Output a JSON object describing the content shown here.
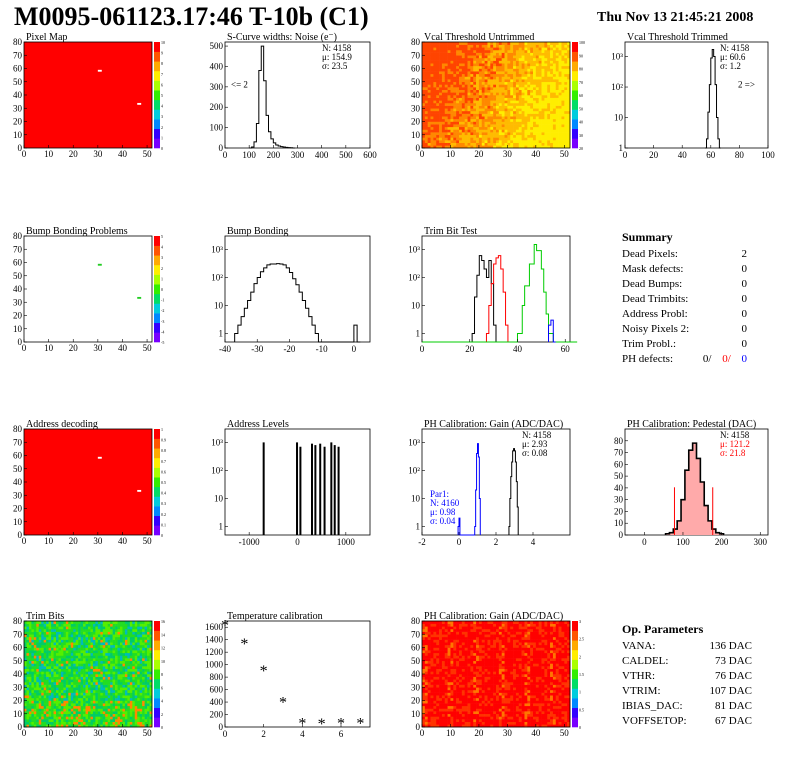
{
  "header": {
    "title": "M0095-061123.17:46 T-10b (C1)",
    "date": "Thu Nov 13 21:45:21 2008"
  },
  "colors": {
    "map_red": "#ff0000",
    "blue": "#0000ff",
    "red": "#ff0000",
    "green": "#00cc00",
    "black": "#000000"
  },
  "panels": [
    {
      "id": "pixel_map",
      "title": "Pixel Map",
      "type": "heatmap",
      "fill_color": "#ff0000",
      "xticks": [
        "0",
        "10",
        "20",
        "30",
        "40",
        "50"
      ],
      "yticks": [
        "0",
        "10",
        "20",
        "30",
        "40",
        "50",
        "60",
        "70",
        "80"
      ],
      "palette_ticks": [
        "0",
        "1",
        "2",
        "3",
        "4",
        "5",
        "6",
        "7",
        "8",
        "9",
        "10"
      ],
      "defect_pixels": [
        {
          "col": 30,
          "row": 58
        },
        {
          "col": 46,
          "row": 33
        }
      ]
    },
    {
      "id": "scurve",
      "title": "S-Curve widths: Noise (e⁻)",
      "type": "histogram",
      "xlim": [
        0,
        600
      ],
      "ylim": [
        0,
        520
      ],
      "log": false,
      "xticks": [
        "0",
        "100",
        "200",
        "300",
        "400",
        "500",
        "600"
      ],
      "yticks": [
        "0",
        "100",
        "200",
        "300",
        "400",
        "500"
      ],
      "stats": [
        "N: 4158",
        "μ: 154.9",
        "σ: 23.5"
      ],
      "note": "<= 2",
      "series": [
        {
          "color": "#000000",
          "bins": [
            [
              100,
              0
            ],
            [
              110,
              5
            ],
            [
              120,
              30
            ],
            [
              130,
              120
            ],
            [
              140,
              380
            ],
            [
              150,
              500
            ],
            [
              160,
              330
            ],
            [
              170,
              160
            ],
            [
              180,
              80
            ],
            [
              190,
              45
            ],
            [
              200,
              25
            ],
            [
              210,
              15
            ],
            [
              220,
              10
            ],
            [
              230,
              7
            ],
            [
              240,
              5
            ],
            [
              250,
              3
            ],
            [
              260,
              2
            ],
            [
              270,
              1
            ],
            [
              280,
              0
            ]
          ]
        }
      ]
    },
    {
      "id": "vcal_untrimmed",
      "title": "Vcal Threshold Untrimmed",
      "type": "heatmap",
      "xticks": [
        "0",
        "10",
        "20",
        "30",
        "40",
        "50"
      ],
      "yticks": [
        "0",
        "10",
        "20",
        "30",
        "40",
        "50",
        "60",
        "70",
        "80"
      ],
      "palette_ticks": [
        "20",
        "30",
        "40",
        "50",
        "60",
        "70",
        "80",
        "90",
        "100"
      ]
    },
    {
      "id": "vcal_trimmed",
      "title": "Vcal Threshold Trimmed",
      "type": "histogram",
      "xlim": [
        0,
        100
      ],
      "ylim": [
        1,
        3000
      ],
      "log": true,
      "xticks": [
        "0",
        "20",
        "40",
        "60",
        "80",
        "100"
      ],
      "yticks": [
        "1",
        "10",
        "10²",
        "10³"
      ],
      "stats": [
        "N: 4158",
        "μ: 60.6",
        "σ:  1.2"
      ],
      "note": "2 =>",
      "series": [
        {
          "color": "#000000",
          "bins": [
            [
              56,
              0
            ],
            [
              57,
              2
            ],
            [
              58,
              15
            ],
            [
              59,
              120
            ],
            [
              60,
              900
            ],
            [
              61,
              1700
            ],
            [
              62,
              1000
            ],
            [
              63,
              120
            ],
            [
              64,
              10
            ],
            [
              65,
              2
            ],
            [
              66,
              0
            ]
          ]
        }
      ]
    },
    {
      "id": "bump_problems",
      "title": "Bump Bonding Problems",
      "type": "heatmap",
      "fill_color": "#ffffff",
      "xticks": [
        "0",
        "10",
        "20",
        "30",
        "40",
        "50"
      ],
      "yticks": [
        "0",
        "10",
        "20",
        "30",
        "40",
        "50",
        "60",
        "70",
        "80"
      ],
      "palette_ticks": [
        "-5",
        "-4",
        "-3",
        "-2",
        "-1",
        "0",
        "1",
        "2",
        "3",
        "4",
        "5"
      ],
      "defect_pixels": [
        {
          "col": 30,
          "row": 58
        },
        {
          "col": 46,
          "row": 33
        }
      ]
    },
    {
      "id": "bump_bonding",
      "title": "Bump Bonding",
      "type": "histogram",
      "xlim": [
        -40,
        5
      ],
      "ylim": [
        0.5,
        3000
      ],
      "log": true,
      "xticks": [
        "-40",
        "-30",
        "-20",
        "-10",
        "0"
      ],
      "yticks": [
        "1",
        "10",
        "10²",
        "10³"
      ],
      "series": [
        {
          "color": "#000000",
          "bins": [
            [
              -37,
              1
            ],
            [
              -36,
              2
            ],
            [
              -35,
              4
            ],
            [
              -34,
              8
            ],
            [
              -33,
              15
            ],
            [
              -32,
              30
            ],
            [
              -31,
              60
            ],
            [
              -30,
              100
            ],
            [
              -29,
              160
            ],
            [
              -28,
              220
            ],
            [
              -27,
              280
            ],
            [
              -26,
              300
            ],
            [
              -25,
              300
            ],
            [
              -24,
              310
            ],
            [
              -23,
              300
            ],
            [
              -22,
              280
            ],
            [
              -21,
              220
            ],
            [
              -20,
              150
            ],
            [
              -19,
              90
            ],
            [
              -18,
              55
            ],
            [
              -17,
              30
            ],
            [
              -16,
              15
            ],
            [
              -15,
              8
            ],
            [
              -14,
              4
            ],
            [
              -13,
              2
            ],
            [
              -12,
              1
            ],
            [
              -11,
              0.5
            ],
            [
              0,
              2
            ],
            [
              1,
              0.5
            ]
          ]
        }
      ]
    },
    {
      "id": "trim_bit_test",
      "title": "Trim Bit Test",
      "type": "histogram",
      "xlim": [
        0,
        62
      ],
      "ylim": [
        0.5,
        3000
      ],
      "log": true,
      "xticks": [
        "0",
        "20",
        "40",
        "60"
      ],
      "yticks": [
        "1",
        "10",
        "10²",
        "10³"
      ],
      "series": [
        {
          "color": "#000000",
          "bins": [
            [
              21,
              1
            ],
            [
              22,
              20
            ],
            [
              23,
              120
            ],
            [
              24,
              600
            ],
            [
              25,
              400
            ],
            [
              26,
              200
            ],
            [
              27,
              100
            ],
            [
              28,
              400
            ],
            [
              29,
              60
            ],
            [
              30,
              2
            ]
          ]
        },
        {
          "color": "#ff0000",
          "bins": [
            [
              27,
              1
            ],
            [
              28,
              10
            ],
            [
              29,
              60
            ],
            [
              30,
              300
            ],
            [
              31,
              500
            ],
            [
              32,
              600
            ],
            [
              33,
              200
            ],
            [
              34,
              30
            ],
            [
              35,
              2
            ]
          ]
        },
        {
          "color": "#00cc00",
          "bins": [
            [
              0,
              0.5
            ],
            [
              30,
              0.5
            ],
            [
              40,
              1
            ],
            [
              42,
              10
            ],
            [
              43,
              50
            ],
            [
              45,
              300
            ],
            [
              47,
              1500
            ],
            [
              48,
              900
            ],
            [
              50,
              200
            ],
            [
              51,
              30
            ],
            [
              52,
              5
            ],
            [
              53,
              1
            ],
            [
              55,
              0.5
            ],
            [
              60,
              0.5
            ]
          ]
        },
        {
          "color": "#0000ff",
          "bins": [
            [
              53,
              2
            ],
            [
              54,
              3
            ],
            [
              55,
              0.5
            ]
          ]
        }
      ]
    },
    {
      "id": "address_decoding",
      "title": "Address decoding",
      "type": "heatmap",
      "fill_color": "#ff0000",
      "xticks": [
        "0",
        "10",
        "20",
        "30",
        "40",
        "50"
      ],
      "yticks": [
        "0",
        "10",
        "20",
        "30",
        "40",
        "50",
        "60",
        "70",
        "80"
      ],
      "palette_ticks": [
        "0",
        "0.1",
        "0.2",
        "0.3",
        "0.4",
        "0.5",
        "0.6",
        "0.7",
        "0.8",
        "0.9",
        "1"
      ],
      "defect_pixels": [
        {
          "col": 30,
          "row": 58
        },
        {
          "col": 46,
          "row": 33
        }
      ]
    },
    {
      "id": "address_levels",
      "title": "Address Levels",
      "type": "spikes",
      "xlim": [
        -1500,
        1500
      ],
      "ylim": [
        0.5,
        3000
      ],
      "log": true,
      "xticks": [
        "-1000",
        "0",
        "1000"
      ],
      "yticks": [
        "1",
        "10",
        "10²",
        "10³"
      ],
      "spikes": [
        [
          -700,
          1000
        ],
        [
          -10,
          1000
        ],
        [
          60,
          700
        ],
        [
          300,
          900
        ],
        [
          370,
          800
        ],
        [
          470,
          900
        ],
        [
          560,
          700
        ],
        [
          700,
          1000
        ],
        [
          770,
          800
        ],
        [
          850,
          700
        ]
      ]
    },
    {
      "id": "ph_gain",
      "title": "PH Calibration: Gain (ADC/DAC)",
      "type": "histogram",
      "xlim": [
        -2,
        6
      ],
      "ylim": [
        0.5,
        3000
      ],
      "log": true,
      "xticks": [
        "-2",
        "0",
        "2",
        "4"
      ],
      "yticks": [
        "1",
        "10",
        "10²",
        "10³"
      ],
      "stats": [
        "N: 4158",
        "μ: 2.93",
        "σ: 0.08"
      ],
      "stats2": [
        "Par1:",
        "N: 4160",
        "μ: 0.98",
        "σ: 0.04"
      ],
      "series": [
        {
          "color": "#000000",
          "bins": [
            [
              2.7,
              1
            ],
            [
              2.75,
              10
            ],
            [
              2.8,
              60
            ],
            [
              2.85,
              200
            ],
            [
              2.9,
              500
            ],
            [
              2.95,
              600
            ],
            [
              3.0,
              500
            ],
            [
              3.05,
              200
            ],
            [
              3.1,
              40
            ],
            [
              3.15,
              5
            ]
          ]
        },
        {
          "color": "#0000ff",
          "bins": [
            [
              -0.05,
              1
            ],
            [
              0.0,
              2
            ],
            [
              0.05,
              0.5
            ],
            [
              0.85,
              1
            ],
            [
              0.9,
              20
            ],
            [
              0.95,
              400
            ],
            [
              1.0,
              900
            ],
            [
              1.05,
              300
            ],
            [
              1.1,
              10
            ]
          ]
        }
      ]
    },
    {
      "id": "ph_pedestal",
      "title": "PH Calibration: Pedestal (DAC)",
      "type": "histogram",
      "xlim": [
        -50,
        320
      ],
      "ylim": [
        0,
        90
      ],
      "log": false,
      "xticks": [
        "0",
        "100",
        "200",
        "300"
      ],
      "yticks": [
        "0",
        "10",
        "20",
        "30",
        "40",
        "50",
        "60",
        "70",
        "80"
      ],
      "stats": [
        "N: 4158",
        "μ: 121.2",
        "σ: 21.8"
      ],
      "stats_colors": [
        "#000000",
        "#ff0000",
        "#ff0000"
      ],
      "series": [
        {
          "color": "#000000",
          "bins": [
            [
              55,
              1
            ],
            [
              65,
              2
            ],
            [
              75,
              5
            ],
            [
              85,
              12
            ],
            [
              95,
              30
            ],
            [
              105,
              55
            ],
            [
              115,
              72
            ],
            [
              125,
              78
            ],
            [
              135,
              65
            ],
            [
              145,
              45
            ],
            [
              155,
              25
            ],
            [
              165,
              12
            ],
            [
              175,
              5
            ],
            [
              185,
              2
            ],
            [
              195,
              1
            ]
          ]
        }
      ],
      "markers": [
        {
          "x": 78,
          "color": "#ff0000"
        },
        {
          "x": 177,
          "color": "#ff0000"
        }
      ]
    },
    {
      "id": "trim_bits",
      "title": "Trim Bits",
      "type": "heatmap",
      "xticks": [
        "0",
        "10",
        "20",
        "30",
        "40",
        "50"
      ],
      "yticks": [
        "0",
        "10",
        "20",
        "30",
        "40",
        "50",
        "60",
        "70",
        "80"
      ],
      "palette_ticks": [
        "0",
        "2",
        "4",
        "6",
        "8",
        "10",
        "12",
        "14",
        "16"
      ]
    },
    {
      "id": "temperature",
      "title": "Temperature calibration",
      "type": "scatter",
      "xlim": [
        0,
        7.5
      ],
      "ylim": [
        0,
        1700
      ],
      "log": false,
      "xticks": [
        "0",
        "2",
        "4",
        "6"
      ],
      "yticks": [
        "0",
        "200",
        "400",
        "600",
        "800",
        "1000",
        "1200",
        "1400",
        "1600"
      ],
      "points": [
        [
          0,
          1630
        ],
        [
          1,
          1330
        ],
        [
          2,
          900
        ],
        [
          3,
          390
        ],
        [
          4,
          55
        ],
        [
          5,
          50
        ],
        [
          6,
          55
        ],
        [
          7,
          55
        ]
      ]
    },
    {
      "id": "ph_gain_map",
      "title": "PH Calibration: Gain (ADC/DAC)",
      "type": "heatmap",
      "xticks": [
        "0",
        "10",
        "20",
        "30",
        "40",
        "50"
      ],
      "yticks": [
        "0",
        "10",
        "20",
        "30",
        "40",
        "50",
        "60",
        "70",
        "80"
      ],
      "palette_ticks": [
        "0",
        "0.5",
        "1",
        "1.5",
        "2",
        "2.5",
        "3"
      ]
    }
  ],
  "summary": {
    "heading": "Summary",
    "rows": [
      {
        "label": "Dead Pixels:",
        "value": "2"
      },
      {
        "label": "Mask defects:",
        "value": "0"
      },
      {
        "label": "Dead Bumps:",
        "value": "0"
      },
      {
        "label": "Dead Trimbits:",
        "value": "0"
      },
      {
        "label": "Address Probl:",
        "value": "0"
      },
      {
        "label": "Noisy Pixels 2:",
        "value": "0"
      },
      {
        "label": "Trim Probl.:",
        "value": "0"
      }
    ],
    "ph_label": "PH defects:",
    "ph_values": [
      {
        "v": "0/",
        "c": "#000000"
      },
      {
        "v": "0/",
        "c": "#ff0000"
      },
      {
        "v": "0",
        "c": "#0000ff"
      }
    ]
  },
  "op_params": {
    "heading": "Op. Parameters",
    "rows": [
      {
        "label": "VANA:",
        "value": "136 DAC"
      },
      {
        "label": "CALDEL:",
        "value": "73 DAC"
      },
      {
        "label": "VTHR:",
        "value": "76 DAC"
      },
      {
        "label": "VTRIM:",
        "value": "107 DAC"
      },
      {
        "label": "IBIAS_DAC:",
        "value": "81 DAC"
      },
      {
        "label": "VOFFSETOP:",
        "value": "67 DAC"
      }
    ]
  }
}
